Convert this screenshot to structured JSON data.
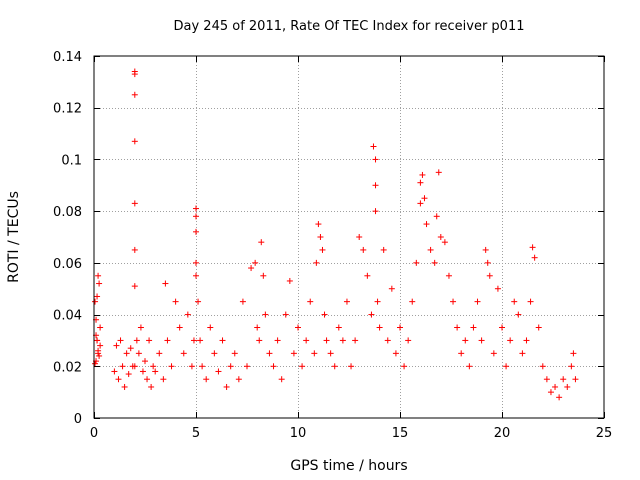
{
  "chart_data": {
    "type": "scatter",
    "title": "Day 245 of 2011, Rate Of TEC Index for receiver p011",
    "xlabel": "GPS time / hours",
    "ylabel": "ROTI / TECUs",
    "xlim": [
      0,
      25
    ],
    "ylim": [
      0,
      0.14
    ],
    "grid": true,
    "xticks": [
      0,
      5,
      10,
      15,
      20,
      25
    ],
    "xtick_labels": [
      "0",
      "5",
      "10",
      "15",
      "20",
      "25"
    ],
    "yticks": [
      0,
      0.02,
      0.04,
      0.06,
      0.08,
      0.1,
      0.12,
      0.14
    ],
    "ytick_labels": [
      "0",
      "0.02",
      "0.04",
      "0.06",
      "0.08",
      "0.1",
      "0.12",
      "0.14"
    ],
    "marker": "+",
    "color": "#ff0000",
    "series": [
      {
        "name": "ROTI",
        "x": [
          0.05,
          0.1,
          0.15,
          0.2,
          0.25,
          0.3,
          0.05,
          0.1,
          0.15,
          0.2,
          0.3,
          0.1,
          0.2,
          0.15,
          0.25,
          1.0,
          1.1,
          1.2,
          1.3,
          1.4,
          1.5,
          1.6,
          1.7,
          1.8,
          1.9,
          2.0,
          2.0,
          2.0,
          2.0,
          2.0,
          2.0,
          2.0,
          2.0,
          2.1,
          2.2,
          2.3,
          2.4,
          2.5,
          2.6,
          2.7,
          2.8,
          2.9,
          3.0,
          3.2,
          3.4,
          3.5,
          3.6,
          3.8,
          4.0,
          4.2,
          4.4,
          4.6,
          4.8,
          4.9,
          5.0,
          5.0,
          5.0,
          5.0,
          5.0,
          5.1,
          5.2,
          5.3,
          5.5,
          5.7,
          5.9,
          6.1,
          6.3,
          6.5,
          6.7,
          6.9,
          7.1,
          7.3,
          7.5,
          7.7,
          7.9,
          8.0,
          8.1,
          8.2,
          8.3,
          8.4,
          8.6,
          8.8,
          9.0,
          9.2,
          9.4,
          9.6,
          9.8,
          10.0,
          10.2,
          10.4,
          10.6,
          10.8,
          10.9,
          11.0,
          11.1,
          11.2,
          11.3,
          11.4,
          11.6,
          11.8,
          12.0,
          12.2,
          12.4,
          12.6,
          12.8,
          13.0,
          13.2,
          13.4,
          13.6,
          13.7,
          13.8,
          13.8,
          13.8,
          13.9,
          14.0,
          14.2,
          14.4,
          14.6,
          14.8,
          15.0,
          15.2,
          15.4,
          15.6,
          15.8,
          16.0,
          16.0,
          16.1,
          16.2,
          16.3,
          16.5,
          16.7,
          16.8,
          16.9,
          17.0,
          17.2,
          17.4,
          17.6,
          17.8,
          18.0,
          18.2,
          18.4,
          18.6,
          18.8,
          19.0,
          19.2,
          19.3,
          19.4,
          19.6,
          19.8,
          20.0,
          20.2,
          20.4,
          20.6,
          20.8,
          21.0,
          21.2,
          21.4,
          21.5,
          21.6,
          21.8,
          22.0,
          22.2,
          22.4,
          22.6,
          22.8,
          23.0,
          23.2,
          23.4,
          23.5,
          23.6
        ],
        "y": [
          0.045,
          0.038,
          0.03,
          0.025,
          0.052,
          0.028,
          0.021,
          0.032,
          0.047,
          0.055,
          0.035,
          0.022,
          0.026,
          0.03,
          0.024,
          0.018,
          0.028,
          0.015,
          0.03,
          0.02,
          0.012,
          0.025,
          0.017,
          0.027,
          0.02,
          0.133,
          0.134,
          0.125,
          0.107,
          0.083,
          0.065,
          0.051,
          0.02,
          0.03,
          0.025,
          0.035,
          0.018,
          0.022,
          0.015,
          0.03,
          0.012,
          0.02,
          0.018,
          0.025,
          0.015,
          0.052,
          0.03,
          0.02,
          0.045,
          0.035,
          0.025,
          0.04,
          0.02,
          0.03,
          0.081,
          0.078,
          0.072,
          0.06,
          0.055,
          0.045,
          0.03,
          0.02,
          0.015,
          0.035,
          0.025,
          0.018,
          0.03,
          0.012,
          0.02,
          0.025,
          0.015,
          0.045,
          0.02,
          0.058,
          0.06,
          0.035,
          0.03,
          0.068,
          0.055,
          0.04,
          0.025,
          0.02,
          0.03,
          0.015,
          0.04,
          0.053,
          0.025,
          0.035,
          0.02,
          0.03,
          0.045,
          0.025,
          0.06,
          0.075,
          0.07,
          0.065,
          0.04,
          0.03,
          0.025,
          0.02,
          0.035,
          0.03,
          0.045,
          0.02,
          0.03,
          0.07,
          0.065,
          0.055,
          0.04,
          0.105,
          0.1,
          0.09,
          0.08,
          0.045,
          0.035,
          0.065,
          0.03,
          0.05,
          0.025,
          0.035,
          0.02,
          0.03,
          0.045,
          0.06,
          0.091,
          0.083,
          0.094,
          0.085,
          0.075,
          0.065,
          0.06,
          0.078,
          0.095,
          0.07,
          0.068,
          0.055,
          0.045,
          0.035,
          0.025,
          0.03,
          0.02,
          0.035,
          0.045,
          0.03,
          0.065,
          0.06,
          0.055,
          0.025,
          0.05,
          0.035,
          0.02,
          0.03,
          0.045,
          0.04,
          0.025,
          0.03,
          0.045,
          0.066,
          0.062,
          0.035,
          0.02,
          0.015,
          0.01,
          0.012,
          0.008,
          0.015,
          0.012,
          0.02,
          0.025,
          0.015
        ]
      }
    ]
  }
}
